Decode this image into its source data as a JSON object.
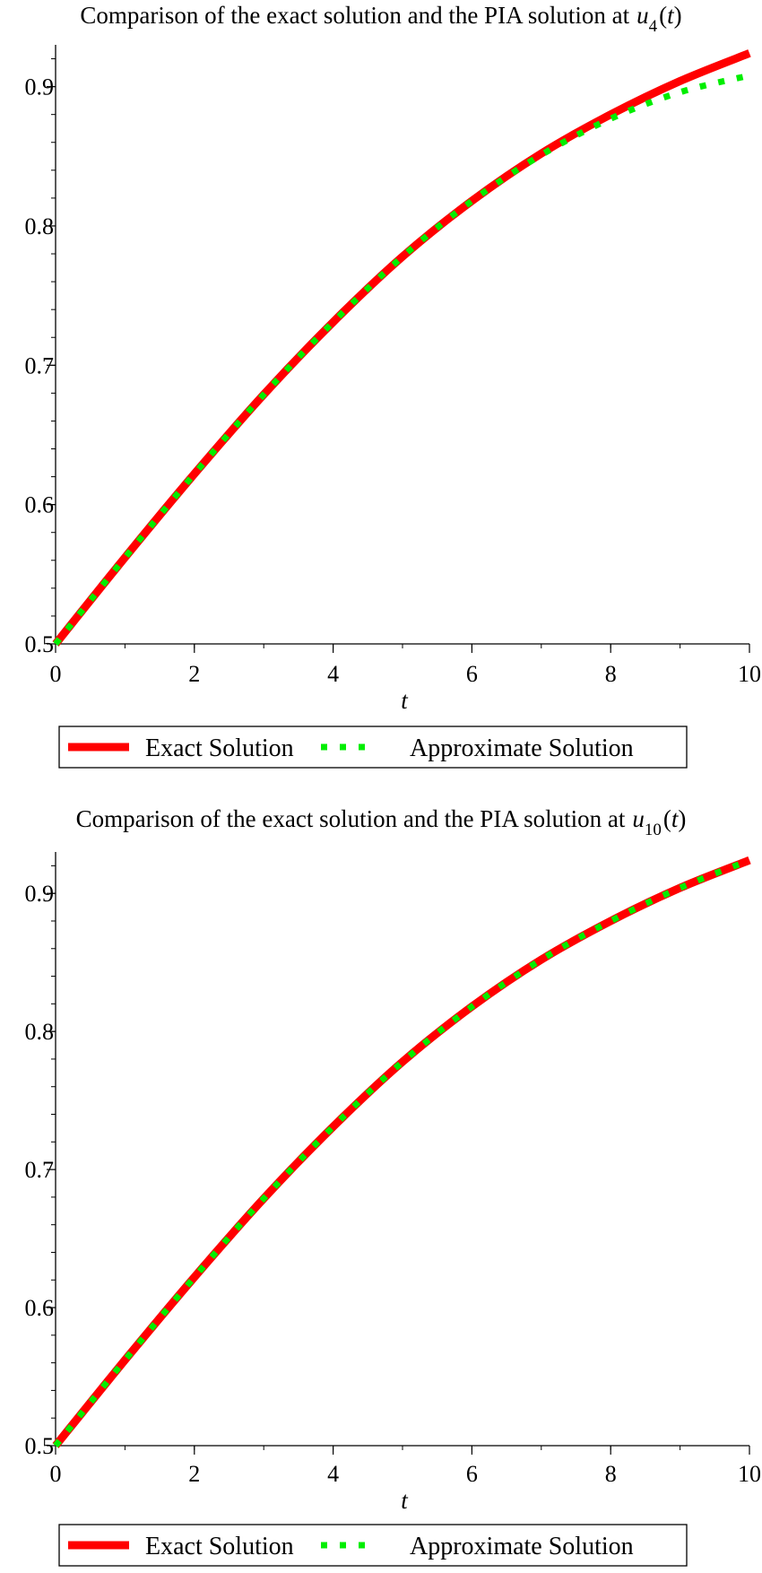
{
  "colors": {
    "exact": "#ff0000",
    "approx": "#00ee00",
    "axis": "#000000",
    "background": "#ffffff"
  },
  "chart_data": [
    {
      "type": "line",
      "title": "Comparison of the exact solution and the PIA solution at",
      "title_math": {
        "symbol": "u",
        "subscript": "4",
        "arg": "t"
      },
      "xlabel": "t",
      "ylabel": "",
      "xlim": [
        0,
        10
      ],
      "ylim": [
        0.5,
        0.93
      ],
      "xticks": [
        0,
        2,
        4,
        6,
        8,
        10
      ],
      "xtick_labels": [
        "0",
        "2",
        "4",
        "6",
        "8",
        "10"
      ],
      "yticks": [
        0.5,
        0.6,
        0.7,
        0.8,
        0.9
      ],
      "ytick_labels": [
        "0.5",
        "0.6",
        "0.7",
        "0.8",
        "0.9"
      ],
      "grid": false,
      "legend_placement": "bottom",
      "series": [
        {
          "name": "Exact Solution",
          "style": "solid",
          "color": "#ff0000",
          "x": [
            0,
            1,
            2,
            3,
            4,
            5,
            6,
            7,
            8,
            9,
            10
          ],
          "y": [
            0.5,
            0.562,
            0.622,
            0.679,
            0.731,
            0.778,
            0.818,
            0.852,
            0.88,
            0.904,
            0.924
          ]
        },
        {
          "name": "Approximate Solution",
          "style": "dotted",
          "color": "#00ee00",
          "x": [
            0,
            1,
            2,
            3,
            4,
            5,
            6,
            7,
            8,
            9,
            10
          ],
          "y": [
            0.5,
            0.562,
            0.622,
            0.679,
            0.731,
            0.778,
            0.818,
            0.851,
            0.877,
            0.896,
            0.908
          ]
        }
      ]
    },
    {
      "type": "line",
      "title": "Comparison of the exact solution and the PIA solution at",
      "title_math": {
        "symbol": "u",
        "subscript": "10",
        "arg": "t"
      },
      "xlabel": "t",
      "ylabel": "",
      "xlim": [
        0,
        10
      ],
      "ylim": [
        0.5,
        0.93
      ],
      "xticks": [
        0,
        2,
        4,
        6,
        8,
        10
      ],
      "xtick_labels": [
        "0",
        "2",
        "4",
        "6",
        "8",
        "10"
      ],
      "yticks": [
        0.5,
        0.6,
        0.7,
        0.8,
        0.9
      ],
      "ytick_labels": [
        "0.5",
        "0.6",
        "0.7",
        "0.8",
        "0.9"
      ],
      "grid": false,
      "legend_placement": "bottom",
      "series": [
        {
          "name": "Exact Solution",
          "style": "solid",
          "color": "#ff0000",
          "x": [
            0,
            1,
            2,
            3,
            4,
            5,
            6,
            7,
            8,
            9,
            10
          ],
          "y": [
            0.5,
            0.562,
            0.622,
            0.679,
            0.731,
            0.778,
            0.818,
            0.852,
            0.88,
            0.904,
            0.924
          ]
        },
        {
          "name": "Approximate Solution",
          "style": "dotted",
          "color": "#00ee00",
          "x": [
            0,
            1,
            2,
            3,
            4,
            5,
            6,
            7,
            8,
            9,
            10
          ],
          "y": [
            0.5,
            0.562,
            0.622,
            0.679,
            0.731,
            0.778,
            0.818,
            0.852,
            0.88,
            0.904,
            0.924
          ]
        }
      ]
    }
  ]
}
